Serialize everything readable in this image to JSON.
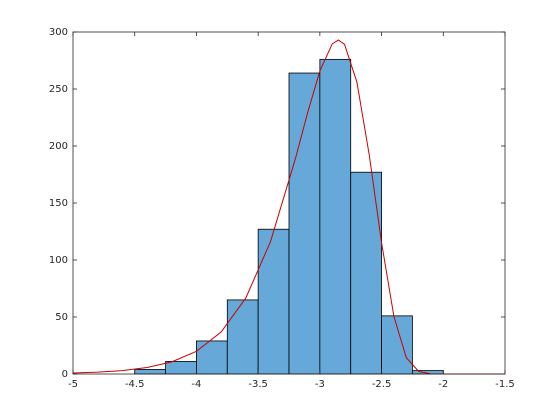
{
  "chart_data": {
    "type": "histogram",
    "bins": [
      -4.5,
      -4.25,
      -4,
      -3.75,
      -3.5,
      -3.25,
      -3,
      -2.75,
      -2.5,
      -2.25,
      -2
    ],
    "values": [
      4,
      11,
      29,
      65,
      127,
      264,
      276,
      177,
      51,
      3
    ],
    "color": "#66a8d8",
    "curve": {
      "type": "line",
      "color": "#cc0000",
      "x": [
        -5,
        -4.8,
        -4.6,
        -4.4,
        -4.2,
        -4,
        -3.8,
        -3.6,
        -3.4,
        -3.2,
        -3.1,
        -3,
        -2.9,
        -2.85,
        -2.8,
        -2.7,
        -2.6,
        -2.5,
        -2.4,
        -2.3,
        -2.2,
        -2.1,
        -2,
        -1.5
      ],
      "values": [
        0.85,
        1.6,
        3.01,
        5.68,
        10.67,
        19.93,
        36.84,
        66.6,
        116.1,
        188.2,
        228.8,
        265.7,
        289.5,
        293,
        289.2,
        256.1,
        192.3,
        115.1,
        50.5,
        14.4,
        2.29,
        0.16,
        0,
        0
      ]
    },
    "xlim": [
      -5,
      -1.5
    ],
    "xticks": [
      -5,
      -4.5,
      -4,
      -3.5,
      -3,
      -2.5,
      -2,
      -1.5
    ],
    "ylim": [
      0,
      300
    ],
    "yticks": [
      0,
      50,
      100,
      150,
      200,
      250,
      300
    ]
  }
}
